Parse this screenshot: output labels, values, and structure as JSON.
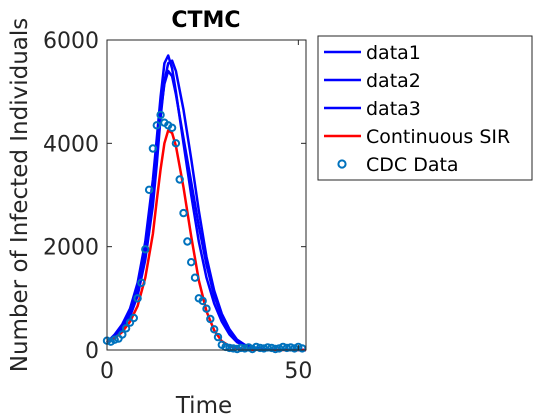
{
  "chart_data": {
    "type": "line",
    "title": "CTMC",
    "xlabel": "Time",
    "ylabel": "Number of Infected Individuals",
    "xlim": [
      0,
      52
    ],
    "ylim": [
      0,
      6000
    ],
    "xticks": [
      "0",
      "50"
    ],
    "yticks": [
      "0",
      "2000",
      "4000",
      "6000"
    ],
    "legend_position": "outside-right-top",
    "grid": false,
    "series": [
      {
        "name": "data1",
        "color": "#0000ff",
        "style": "line",
        "x": [
          0,
          2,
          4,
          6,
          8,
          10,
          12,
          13,
          14,
          15,
          16,
          17,
          18,
          20,
          22,
          24,
          26,
          28,
          30,
          32,
          34,
          36,
          38,
          40,
          42,
          44,
          46,
          48,
          50,
          52
        ],
        "y": [
          150,
          300,
          500,
          800,
          1300,
          2100,
          3300,
          4100,
          4900,
          5550,
          5700,
          5450,
          5000,
          4000,
          3000,
          2100,
          1400,
          900,
          550,
          300,
          150,
          80,
          40,
          20,
          10,
          5,
          3,
          2,
          1,
          0
        ]
      },
      {
        "name": "data2",
        "color": "#0000ff",
        "style": "line",
        "x": [
          0,
          2,
          4,
          6,
          8,
          10,
          12,
          13,
          14,
          15,
          16,
          17,
          18,
          20,
          22,
          24,
          26,
          28,
          30,
          32,
          34,
          36,
          38,
          40,
          42,
          44,
          46,
          48,
          50,
          52
        ],
        "y": [
          150,
          250,
          400,
          650,
          1050,
          1750,
          2800,
          3600,
          4500,
          5200,
          5550,
          5600,
          5400,
          4650,
          3700,
          2700,
          1800,
          1150,
          700,
          400,
          200,
          100,
          50,
          25,
          12,
          6,
          3,
          2,
          1,
          0
        ]
      },
      {
        "name": "data3",
        "color": "#0000ff",
        "style": "line",
        "x": [
          0,
          2,
          4,
          6,
          8,
          10,
          12,
          13,
          14,
          15,
          16,
          17,
          18,
          20,
          22,
          24,
          26,
          28,
          30,
          32,
          34,
          36,
          38,
          40,
          42,
          44,
          46,
          48,
          50,
          52
        ],
        "y": [
          150,
          280,
          450,
          750,
          1200,
          1950,
          3000,
          3800,
          4600,
          5150,
          5400,
          5300,
          4950,
          4100,
          3250,
          2400,
          1650,
          1050,
          650,
          350,
          180,
          90,
          45,
          22,
          11,
          5,
          3,
          2,
          1,
          0
        ]
      },
      {
        "name": "Continuous SIR",
        "color": "#ff0000",
        "style": "line",
        "x": [
          0,
          2,
          4,
          6,
          8,
          10,
          12,
          13,
          14,
          15,
          16,
          17,
          18,
          20,
          22,
          24,
          26,
          28,
          30,
          32,
          34,
          36,
          38,
          40,
          42,
          44,
          46,
          48,
          50,
          52
        ],
        "y": [
          150,
          230,
          350,
          550,
          850,
          1400,
          2250,
          2900,
          3500,
          4000,
          4250,
          4200,
          3950,
          3150,
          2200,
          1350,
          750,
          380,
          170,
          75,
          30,
          12,
          5,
          2,
          1,
          0,
          0,
          0,
          0,
          0
        ]
      },
      {
        "name": "CDC Data",
        "color": "#0072bd",
        "style": "markers",
        "x": [
          0,
          1,
          2,
          3,
          4,
          5,
          6,
          7,
          8,
          9,
          10,
          11,
          12,
          13,
          14,
          15,
          16,
          17,
          18,
          19,
          20,
          21,
          22,
          23,
          24,
          25,
          26,
          27,
          28,
          29,
          30,
          31,
          32,
          33,
          34,
          35,
          36,
          37,
          38,
          39,
          40,
          41,
          42,
          43,
          44,
          45,
          46,
          47,
          48,
          49,
          50,
          51
        ],
        "y": [
          180,
          160,
          200,
          220,
          300,
          420,
          530,
          620,
          1000,
          1300,
          1950,
          3100,
          3900,
          4350,
          4550,
          4400,
          4350,
          4300,
          4000,
          3300,
          2650,
          2100,
          1700,
          1400,
          1000,
          950,
          800,
          600,
          400,
          250,
          100,
          60,
          40,
          30,
          20,
          40,
          30,
          50,
          20,
          60,
          40,
          30,
          50,
          40,
          20,
          30,
          60,
          40,
          50,
          30,
          60,
          30
        ]
      }
    ]
  }
}
